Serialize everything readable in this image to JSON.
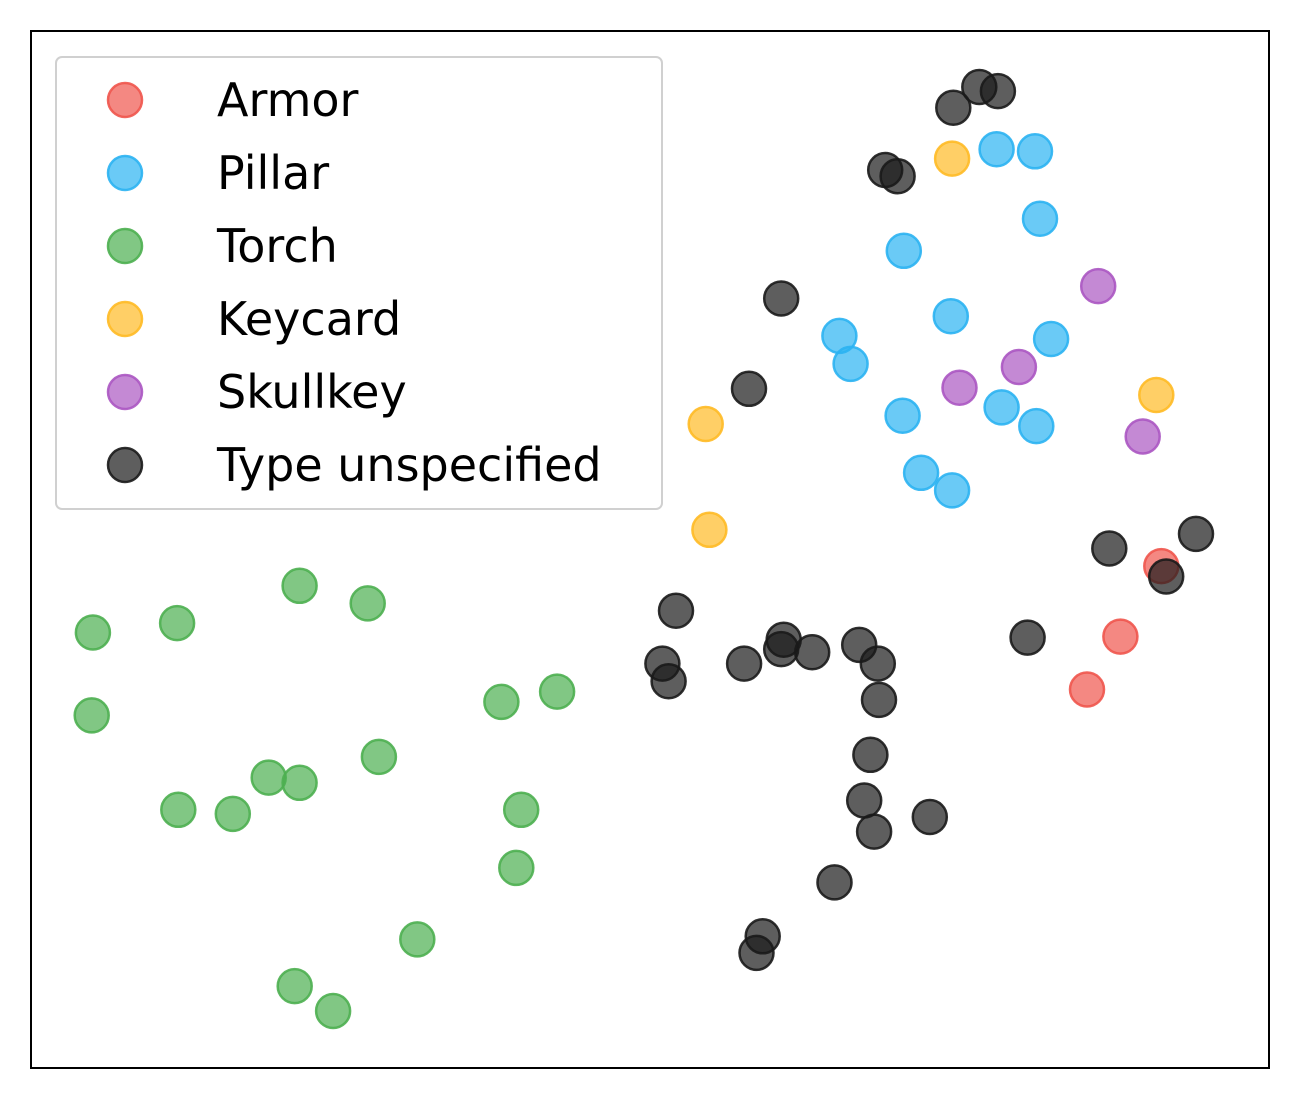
{
  "chart_data": {
    "type": "scatter",
    "title": "",
    "xlabel": "",
    "ylabel": "",
    "xlim": [
      0,
      100
    ],
    "ylim": [
      0,
      100
    ],
    "grid": false,
    "ticks": "none",
    "legend_position": "top-left",
    "series": [
      {
        "name": "Armor",
        "color": "#F0554D",
        "points": [
          [
            91.3,
            48.4
          ],
          [
            88.0,
            41.6
          ],
          [
            85.3,
            36.5
          ]
        ]
      },
      {
        "name": "Pillar",
        "color": "#2BB3F2",
        "points": [
          [
            78.0,
            88.6
          ],
          [
            81.1,
            88.4
          ],
          [
            81.5,
            81.9
          ],
          [
            70.5,
            78.8
          ],
          [
            74.3,
            72.5
          ],
          [
            65.3,
            70.6
          ],
          [
            66.2,
            67.9
          ],
          [
            82.4,
            70.3
          ],
          [
            70.4,
            62.9
          ],
          [
            78.4,
            63.7
          ],
          [
            81.2,
            61.9
          ],
          [
            71.9,
            57.4
          ],
          [
            74.4,
            55.7
          ]
        ]
      },
      {
        "name": "Torch",
        "color": "#4CAF50",
        "points": [
          [
            21.7,
            46.5
          ],
          [
            27.2,
            44.8
          ],
          [
            5.0,
            42.0
          ],
          [
            11.8,
            42.9
          ],
          [
            4.9,
            34.0
          ],
          [
            38.0,
            35.3
          ],
          [
            42.5,
            36.3
          ],
          [
            28.1,
            30.0
          ],
          [
            19.2,
            28.0
          ],
          [
            21.7,
            27.5
          ],
          [
            11.9,
            24.9
          ],
          [
            16.3,
            24.5
          ],
          [
            39.6,
            24.9
          ],
          [
            39.2,
            19.3
          ],
          [
            31.2,
            12.4
          ],
          [
            21.3,
            7.9
          ],
          [
            24.4,
            5.5
          ]
        ]
      },
      {
        "name": "Keycard",
        "color": "#FFBA25",
        "points": [
          [
            74.4,
            87.7
          ],
          [
            54.5,
            62.1
          ],
          [
            90.9,
            64.9
          ],
          [
            54.8,
            51.9
          ]
        ]
      },
      {
        "name": "Skullkey",
        "color": "#AB57C2",
        "points": [
          [
            86.2,
            75.4
          ],
          [
            79.8,
            67.6
          ],
          [
            75.0,
            65.6
          ],
          [
            89.8,
            60.9
          ]
        ]
      },
      {
        "name": "Type unspecified",
        "color": "#1A1A1A",
        "points": [
          [
            76.6,
            94.6
          ],
          [
            78.1,
            94.2
          ],
          [
            74.5,
            92.6
          ],
          [
            69.0,
            86.6
          ],
          [
            70.0,
            86.0
          ],
          [
            60.6,
            74.2
          ],
          [
            58.0,
            65.5
          ],
          [
            94.1,
            51.5
          ],
          [
            87.1,
            50.1
          ],
          [
            91.7,
            47.4
          ],
          [
            52.1,
            44.1
          ],
          [
            80.5,
            41.5
          ],
          [
            60.8,
            41.3
          ],
          [
            60.6,
            40.4
          ],
          [
            63.1,
            40.1
          ],
          [
            66.9,
            40.8
          ],
          [
            51.0,
            39.0
          ],
          [
            57.6,
            39.0
          ],
          [
            68.4,
            39.0
          ],
          [
            51.5,
            37.3
          ],
          [
            68.5,
            35.5
          ],
          [
            67.8,
            30.2
          ],
          [
            67.3,
            25.8
          ],
          [
            72.6,
            24.2
          ],
          [
            68.1,
            22.8
          ],
          [
            64.9,
            17.9
          ],
          [
            59.1,
            12.7
          ],
          [
            58.6,
            11.1
          ]
        ]
      }
    ]
  }
}
